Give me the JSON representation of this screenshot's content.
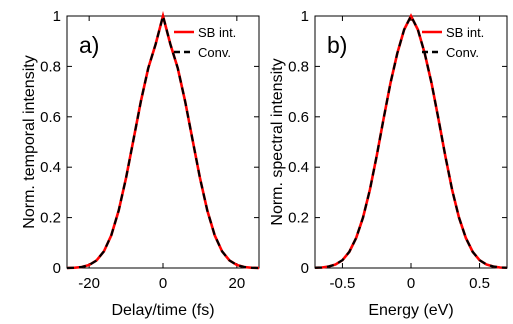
{
  "chart_data": [
    {
      "type": "line",
      "panel_label": "a)",
      "xlabel": "Delay/time (fs)",
      "ylabel": "Norm. temporal intensity",
      "xlim": [
        -26,
        26
      ],
      "ylim": [
        0,
        1
      ],
      "xticks": [
        -20,
        0,
        20
      ],
      "xtick_labels": [
        "-20",
        "0",
        "20"
      ],
      "yticks": [
        0,
        0.2,
        0.4,
        0.6,
        0.8,
        1
      ],
      "ytick_labels": [
        "0",
        "0.2",
        "0.4",
        "0.6",
        "0.8",
        "1"
      ],
      "grid": false,
      "legend": "top-right",
      "series": [
        {
          "name": "SB int.",
          "color": "#ff0000",
          "style": "solid",
          "x": [
            -26,
            -24,
            -22,
            -20,
            -18,
            -16,
            -14,
            -12,
            -10,
            -8,
            -6,
            -4,
            -2,
            0,
            2,
            4,
            6,
            8,
            10,
            12,
            14,
            16,
            18,
            20,
            22,
            24,
            26
          ],
          "y": [
            0.0,
            0.001,
            0.004,
            0.012,
            0.03,
            0.066,
            0.13,
            0.228,
            0.358,
            0.509,
            0.661,
            0.793,
            0.888,
            1.0,
            0.888,
            0.793,
            0.661,
            0.509,
            0.358,
            0.228,
            0.13,
            0.066,
            0.03,
            0.012,
            0.004,
            0.001,
            0.0
          ]
        },
        {
          "name": "Conv.",
          "color": "#000000",
          "style": "dashed",
          "x": [
            -26,
            -24,
            -22,
            -20,
            -18,
            -16,
            -14,
            -12,
            -10,
            -8,
            -6,
            -4,
            -2,
            0,
            2,
            4,
            6,
            8,
            10,
            12,
            14,
            16,
            18,
            20,
            22,
            24,
            26
          ],
          "y": [
            0.0,
            0.001,
            0.004,
            0.012,
            0.03,
            0.066,
            0.13,
            0.228,
            0.358,
            0.509,
            0.661,
            0.793,
            0.888,
            1.0,
            0.888,
            0.793,
            0.661,
            0.509,
            0.358,
            0.228,
            0.13,
            0.066,
            0.03,
            0.012,
            0.004,
            0.001,
            0.0
          ]
        }
      ]
    },
    {
      "type": "line",
      "panel_label": "b)",
      "xlabel": "Energy (eV)",
      "ylabel": "Norm. spectral intensity",
      "xlim": [
        -0.7,
        0.7
      ],
      "ylim": [
        0,
        1
      ],
      "xticks": [
        -0.5,
        0,
        0.5
      ],
      "xtick_labels": [
        "-0.5",
        "0",
        "0.5"
      ],
      "yticks": [
        0,
        0.2,
        0.4,
        0.6,
        0.8,
        1
      ],
      "ytick_labels": [
        "0",
        "0.2",
        "0.4",
        "0.6",
        "0.8",
        "1"
      ],
      "grid": false,
      "legend": "top-right",
      "series": [
        {
          "name": "SB int.",
          "color": "#ff0000",
          "style": "solid",
          "x": [
            -0.7,
            -0.65,
            -0.6,
            -0.55,
            -0.5,
            -0.45,
            -0.4,
            -0.35,
            -0.3,
            -0.25,
            -0.2,
            -0.15,
            -0.1,
            -0.05,
            0,
            0.05,
            0.1,
            0.15,
            0.2,
            0.25,
            0.3,
            0.35,
            0.4,
            0.45,
            0.5,
            0.55,
            0.6,
            0.65,
            0.7
          ],
          "y": [
            0.001,
            0.002,
            0.006,
            0.014,
            0.031,
            0.064,
            0.119,
            0.2,
            0.31,
            0.445,
            0.592,
            0.733,
            0.852,
            0.946,
            1.0,
            0.946,
            0.852,
            0.733,
            0.592,
            0.445,
            0.31,
            0.2,
            0.119,
            0.064,
            0.031,
            0.014,
            0.006,
            0.002,
            0.001
          ]
        },
        {
          "name": "Conv.",
          "color": "#000000",
          "style": "dashed",
          "x": [
            -0.7,
            -0.65,
            -0.6,
            -0.55,
            -0.5,
            -0.45,
            -0.4,
            -0.35,
            -0.3,
            -0.25,
            -0.2,
            -0.15,
            -0.1,
            -0.05,
            0,
            0.05,
            0.1,
            0.15,
            0.2,
            0.25,
            0.3,
            0.35,
            0.4,
            0.45,
            0.5,
            0.55,
            0.6,
            0.65,
            0.7
          ],
          "y": [
            0.001,
            0.002,
            0.006,
            0.014,
            0.031,
            0.064,
            0.119,
            0.2,
            0.31,
            0.445,
            0.592,
            0.733,
            0.852,
            0.946,
            1.0,
            0.946,
            0.852,
            0.733,
            0.592,
            0.445,
            0.31,
            0.2,
            0.119,
            0.064,
            0.031,
            0.014,
            0.006,
            0.002,
            0.001
          ]
        }
      ]
    }
  ]
}
